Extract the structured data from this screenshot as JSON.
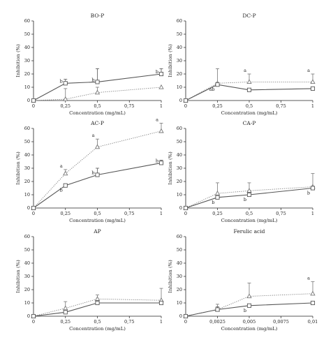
{
  "colors": {
    "axis": "#222222",
    "solid": "#555555",
    "dotted": "#777777",
    "marker_fill": "#ffffff"
  },
  "chart_data": [
    {
      "type": "line",
      "title": "BO-P",
      "xlabel": "Concentration (mg/mL)",
      "ylabel": "Inhibition (%)",
      "ylim": [
        0,
        60
      ],
      "y_ticks": [
        "0",
        "10",
        "20",
        "30",
        "40",
        "50",
        "60"
      ],
      "x_ticks": [
        "0",
        "0,25",
        "0,5",
        "0,75",
        "1"
      ],
      "x_tick_values": [
        0,
        0.25,
        0.5,
        0.75,
        1
      ],
      "x": [
        0,
        0.25,
        0.5,
        1
      ],
      "series": [
        {
          "style": "solid",
          "marker": "square",
          "values": [
            0,
            13,
            14,
            20
          ],
          "errors": [
            0,
            3,
            10,
            4
          ],
          "labels": [
            "",
            "b",
            "b",
            "b"
          ]
        },
        {
          "style": "dotted",
          "marker": "triangle",
          "values": [
            0,
            1,
            6,
            10
          ],
          "errors": [
            0,
            8,
            4,
            0
          ],
          "labels": [
            "",
            "",
            "",
            ""
          ]
        }
      ]
    },
    {
      "type": "line",
      "title": "DC-P",
      "xlabel": "Concentration (mg/mL)",
      "ylabel": "Inhibition (%)",
      "ylim": [
        0,
        60
      ],
      "y_ticks": [
        "0",
        "10",
        "20",
        "30",
        "40",
        "50",
        "60"
      ],
      "x_ticks": [
        "0",
        "0,25",
        "0,5",
        "0,75",
        "1"
      ],
      "x_tick_values": [
        0,
        0.25,
        0.5,
        0.75,
        1
      ],
      "x": [
        0,
        0.25,
        0.5,
        1
      ],
      "series": [
        {
          "style": "solid",
          "marker": "square",
          "values": [
            0,
            12,
            8,
            9
          ],
          "errors": [
            0,
            0,
            0,
            0
          ],
          "labels": [
            "",
            "ab",
            "",
            ""
          ]
        },
        {
          "style": "dotted",
          "marker": "triangle",
          "values": [
            0,
            13,
            14,
            14
          ],
          "errors": [
            0,
            11,
            6,
            6
          ],
          "labels": [
            "",
            "",
            "a",
            "a"
          ]
        }
      ]
    },
    {
      "type": "line",
      "title": "AC-P",
      "xlabel": "Concentration (mg/mL)",
      "ylabel": "Inhibition (%)",
      "ylim": [
        0,
        60
      ],
      "y_ticks": [
        "0",
        "10",
        "20",
        "30",
        "40",
        "50",
        "60"
      ],
      "x_ticks": [
        "0",
        "0,25",
        "0,5",
        "0,75",
        "1"
      ],
      "x_tick_values": [
        0,
        0.25,
        0.5,
        0.75,
        1
      ],
      "x": [
        0,
        0.25,
        0.5,
        1
      ],
      "series": [
        {
          "style": "solid",
          "marker": "square",
          "values": [
            0,
            17,
            25,
            34
          ],
          "errors": [
            0,
            0,
            5,
            2
          ],
          "labels": [
            "",
            "b",
            "b",
            "b"
          ]
        },
        {
          "style": "dotted",
          "marker": "triangle",
          "values": [
            0,
            26,
            46,
            58
          ],
          "errors": [
            0,
            3,
            6,
            6
          ],
          "labels": [
            "",
            "a",
            "a",
            "a"
          ]
        }
      ]
    },
    {
      "type": "line",
      "title": "CA-P",
      "xlabel": "Concentration (mg/mL)",
      "ylabel": "Inhibition (%)",
      "ylim": [
        0,
        60
      ],
      "y_ticks": [
        "0",
        "10",
        "20",
        "30",
        "40",
        "50",
        "60"
      ],
      "x_ticks": [
        "0",
        "0,25",
        "0,5",
        "0,75",
        "1"
      ],
      "x_tick_values": [
        0,
        0.25,
        0.5,
        0.75,
        1
      ],
      "x": [
        0,
        0.25,
        0.5,
        1
      ],
      "series": [
        {
          "style": "solid",
          "marker": "square",
          "values": [
            0,
            8,
            10,
            15
          ],
          "errors": [
            0,
            0,
            0,
            0
          ],
          "labels": [
            "",
            "b",
            "b",
            "b"
          ]
        },
        {
          "style": "dotted",
          "marker": "triangle",
          "values": [
            0,
            11,
            13,
            16
          ],
          "errors": [
            0,
            8,
            6,
            10
          ],
          "labels": [
            "",
            "",
            "",
            ""
          ]
        }
      ]
    },
    {
      "type": "line",
      "title": "AP",
      "xlabel": "Concentration (mg/mL)",
      "ylabel": "Inhibition (%)",
      "ylim": [
        0,
        60
      ],
      "y_ticks": [
        "0",
        "10",
        "20",
        "30",
        "40",
        "50",
        "60"
      ],
      "x_ticks": [
        "0",
        "0,25",
        "0,5",
        "0,75",
        "1"
      ],
      "x_tick_values": [
        0,
        0.25,
        0.5,
        0.75,
        1
      ],
      "x": [
        0,
        0.25,
        0.5,
        1
      ],
      "series": [
        {
          "style": "solid",
          "marker": "square",
          "values": [
            0,
            3,
            10,
            10
          ],
          "errors": [
            0,
            0,
            0,
            0
          ],
          "labels": [
            "",
            "",
            "",
            ""
          ]
        },
        {
          "style": "dotted",
          "marker": "triangle",
          "values": [
            0,
            6,
            13,
            12
          ],
          "errors": [
            0,
            5,
            3,
            9
          ],
          "labels": [
            "",
            "",
            "",
            ""
          ]
        }
      ]
    },
    {
      "type": "line",
      "title": "Ferulic acid",
      "xlabel": "Concentration (mg/mL)",
      "ylabel": "Inhibition (%)",
      "ylim": [
        0,
        60
      ],
      "y_ticks": [
        "0",
        "10",
        "20",
        "30",
        "40",
        "50",
        "60"
      ],
      "x_ticks": [
        "0",
        "0,0025",
        "0,005",
        "0,0075",
        "0,01"
      ],
      "x_tick_values": [
        0,
        0.0025,
        0.005,
        0.0075,
        0.01
      ],
      "x": [
        0,
        0.0025,
        0.005,
        0.01
      ],
      "series": [
        {
          "style": "solid",
          "marker": "square",
          "values": [
            0,
            5,
            8,
            10
          ],
          "errors": [
            0,
            2,
            0,
            0
          ],
          "labels": [
            "",
            "",
            "b",
            ""
          ]
        },
        {
          "style": "dotted",
          "marker": "triangle",
          "values": [
            0,
            5,
            15,
            17
          ],
          "errors": [
            0,
            4,
            10,
            9
          ],
          "labels": [
            "",
            "",
            "",
            "a"
          ]
        }
      ]
    }
  ]
}
